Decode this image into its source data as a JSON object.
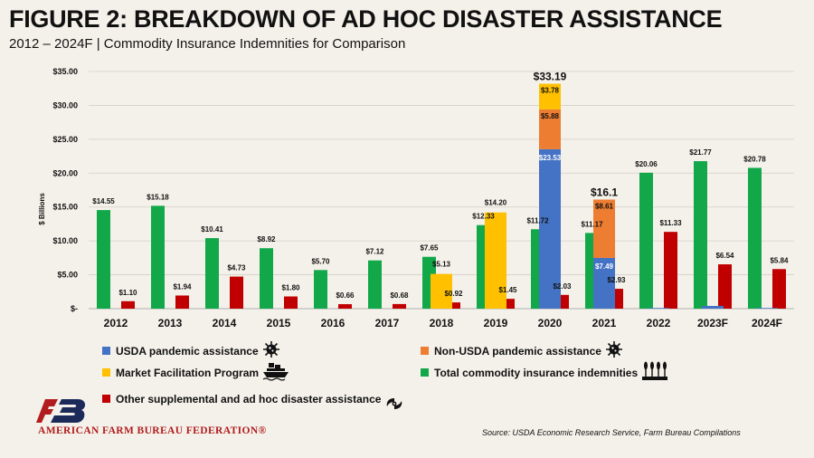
{
  "header": {
    "title": "FIGURE 2: BREAKDOWN OF AD HOC DISASTER ASSISTANCE",
    "subtitle": "2012 – 2024F | Commodity Insurance Indemnities for Comparison"
  },
  "legend": {
    "usda_pandemic": "USDA pandemic assistance",
    "non_usda_pandemic": "Non-USDA pandemic assistance",
    "mfp": "Market Facilitation Program",
    "insurance": "Total commodity insurance indemnities",
    "other": "Other supplemental and ad hoc disaster assistance"
  },
  "colors": {
    "usda_pandemic": "#4472c4",
    "non_usda_pandemic": "#ed7d31",
    "mfp": "#ffc000",
    "insurance": "#12a84a",
    "other": "#c00000"
  },
  "footer": {
    "org": "AMERICAN FARM BUREAU FEDERATION®",
    "source": "Source: USDA Economic Research Service, Farm Bureau Compilations"
  },
  "chart_data": {
    "type": "bar",
    "ylabel": "$ Billions",
    "ylim": [
      0,
      35
    ],
    "yticks": [
      "$-",
      "$5.00",
      "$10.00",
      "$15.00",
      "$20.00",
      "$25.00",
      "$30.00",
      "$35.00"
    ],
    "categories": [
      "2012",
      "2013",
      "2014",
      "2015",
      "2016",
      "2017",
      "2018",
      "2019",
      "2020",
      "2021",
      "2022",
      "2023F",
      "2024F"
    ],
    "insurance": {
      "name": "Total commodity insurance indemnities",
      "values": [
        14.55,
        15.18,
        10.41,
        8.92,
        5.7,
        7.12,
        7.65,
        12.33,
        11.72,
        11.17,
        20.06,
        21.77,
        20.78
      ],
      "labels": [
        "$14.55",
        "$15.18",
        "$10.41",
        "$8.92",
        "$5.70",
        "$7.12",
        "$7.65",
        "$12.33",
        "$11.72",
        "$11.17",
        "$20.06",
        "$21.77",
        "$20.78"
      ]
    },
    "other": {
      "name": "Other supplemental and ad hoc disaster assistance",
      "values": [
        1.1,
        1.94,
        4.73,
        1.8,
        0.66,
        0.68,
        0.92,
        1.45,
        2.03,
        2.93,
        11.33,
        6.54,
        5.84
      ],
      "labels": [
        "$1.10",
        "$1.94",
        "$4.73",
        "$1.80",
        "$0.66",
        "$0.68",
        "$0.92",
        "$1.45",
        "$2.03",
        "$2.93",
        "$11.33",
        "$6.54",
        "$5.84"
      ]
    },
    "aid_stack": [
      {
        "category": "2018",
        "segments": [
          {
            "series": "mfp",
            "value": 5.13,
            "label": "$5.13"
          }
        ],
        "total_label": ""
      },
      {
        "category": "2019",
        "segments": [
          {
            "series": "mfp",
            "value": 14.2,
            "label": "$14.20"
          }
        ],
        "total_label": ""
      },
      {
        "category": "2020",
        "segments": [
          {
            "series": "usda_pandemic",
            "value": 23.53,
            "label": "$23.53"
          },
          {
            "series": "non_usda_pandemic",
            "value": 5.88,
            "label": "$5.88"
          },
          {
            "series": "mfp",
            "value": 3.78,
            "label": "$3.78"
          }
        ],
        "total_label": "$33.19"
      },
      {
        "category": "2021",
        "segments": [
          {
            "series": "usda_pandemic",
            "value": 7.49,
            "label": "$7.49"
          },
          {
            "series": "non_usda_pandemic",
            "value": 8.61,
            "label": "$8.61"
          }
        ],
        "total_label": "$16.1"
      },
      {
        "category": "2022",
        "segments": [
          {
            "series": "usda_pandemic",
            "value": 0.1,
            "label": ""
          }
        ],
        "total_label": ""
      },
      {
        "category": "2023F",
        "segments": [
          {
            "series": "usda_pandemic",
            "value": 0.4,
            "label": ""
          }
        ],
        "total_label": ""
      },
      {
        "category": "2024F",
        "segments": [
          {
            "series": "usda_pandemic",
            "value": 0.1,
            "label": ""
          }
        ],
        "total_label": ""
      }
    ]
  }
}
